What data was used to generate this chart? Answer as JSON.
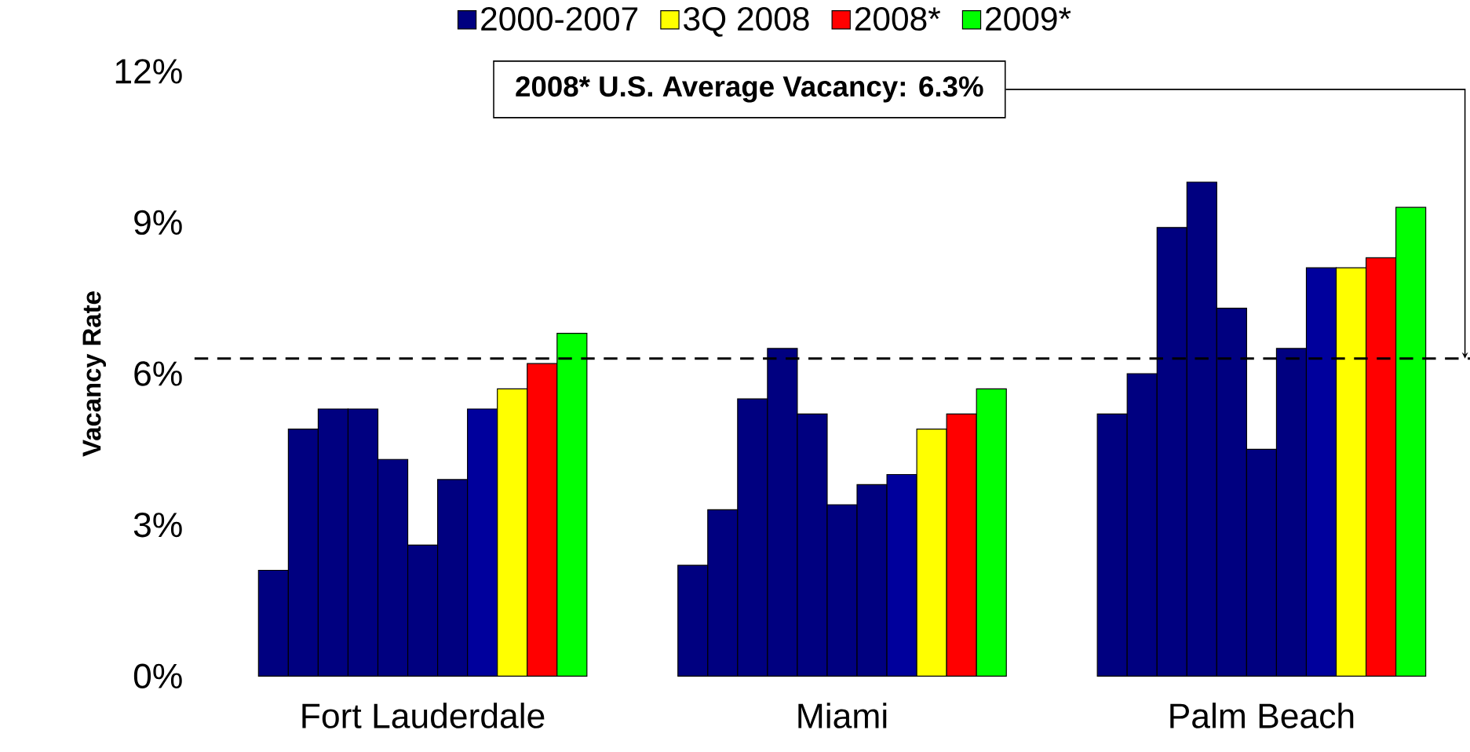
{
  "chart_data": {
    "type": "bar",
    "ylabel": "Vacancy Rate",
    "categories": [
      "Fort Lauderdale",
      "Miami",
      "Palm Beach"
    ],
    "series": [
      {
        "name": "2000-2007",
        "color": "#000080",
        "values": [
          2.1,
          2.2,
          5.2
        ]
      },
      {
        "color": "#000080",
        "values": [
          4.9,
          3.3,
          6.0
        ]
      },
      {
        "color": "#000080",
        "values": [
          5.3,
          5.5,
          8.9
        ]
      },
      {
        "color": "#000080",
        "values": [
          5.3,
          6.5,
          9.8
        ]
      },
      {
        "color": "#000080",
        "values": [
          4.3,
          5.2,
          7.3
        ]
      },
      {
        "color": "#000080",
        "values": [
          2.6,
          3.4,
          4.5
        ]
      },
      {
        "color": "#000080",
        "values": [
          3.9,
          3.8,
          6.5
        ]
      },
      {
        "color": "#00009c",
        "values": [
          5.3,
          4.0,
          8.1
        ]
      },
      {
        "name": "3Q 2008",
        "color": "#ffff00",
        "values": [
          5.7,
          4.9,
          8.1
        ]
      },
      {
        "name": "2008*",
        "color": "#ff0000",
        "values": [
          6.2,
          5.2,
          8.3
        ]
      },
      {
        "name": "2009*",
        "color": "#00ff00",
        "values": [
          6.8,
          5.7,
          9.3
        ]
      }
    ],
    "ylim": [
      0,
      12
    ],
    "yticks": [
      {
        "value": 0,
        "label": "0%"
      },
      {
        "value": 3,
        "label": "3%"
      },
      {
        "value": 6,
        "label": "6%"
      },
      {
        "value": 9,
        "label": "9%"
      },
      {
        "value": 12,
        "label": "12%"
      }
    ],
    "legend": "top",
    "ref_lines": [
      {
        "axis": "y",
        "value": 6.3,
        "label": "2008* U.S. Average Vacancy: 6.3%",
        "color": "#000000",
        "line_style": "dashed"
      }
    ]
  }
}
